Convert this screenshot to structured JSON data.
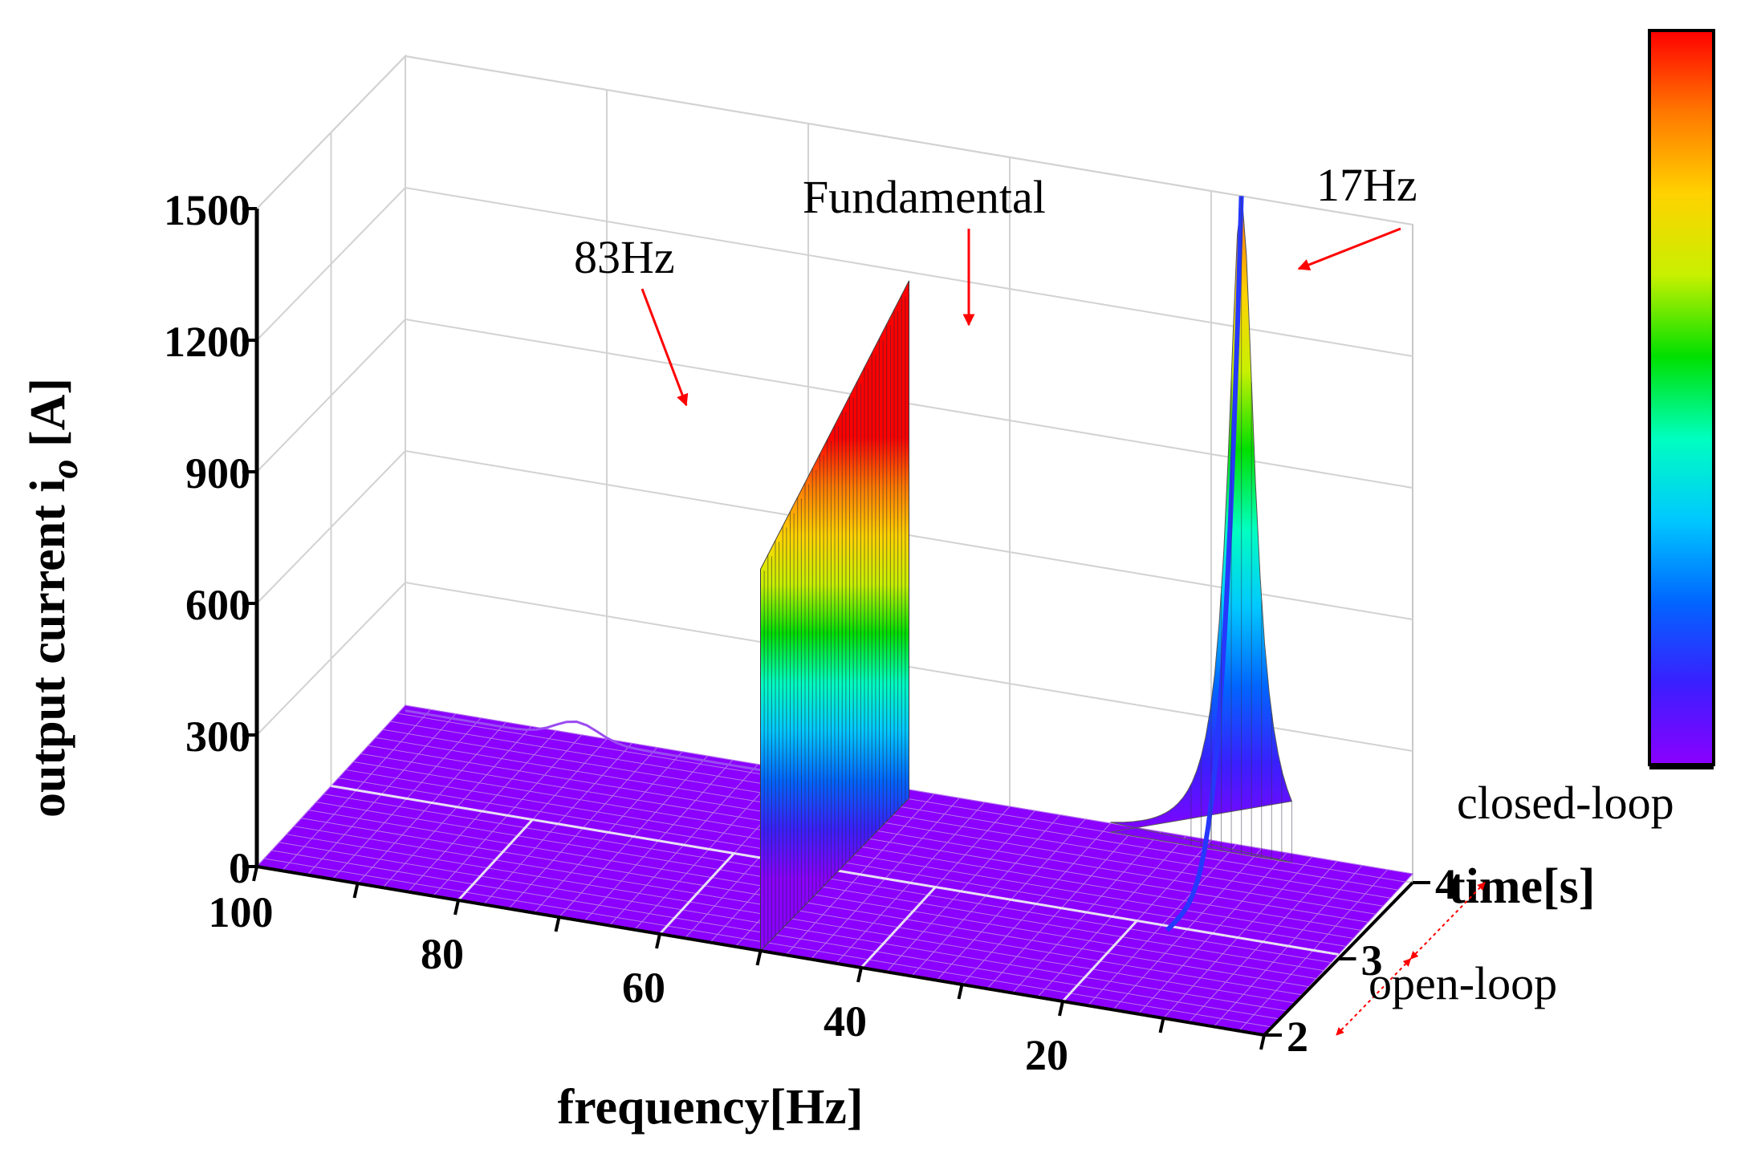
{
  "chart_data": {
    "type": "surface3d",
    "title": "",
    "xlabel": "frequency[Hz]",
    "ylabel": "time[s]",
    "zlabel": "output current i",
    "zlabel_subscript": "o",
    "zlabel_unit": " [A]",
    "xlim": [
      100,
      0
    ],
    "ylim": [
      2,
      4
    ],
    "zlim": [
      0,
      1500
    ],
    "x_ticks": [
      "100",
      "80",
      "60",
      "40",
      "20"
    ],
    "x_tick_values": [
      100,
      80,
      60,
      40,
      20
    ],
    "y_ticks": [
      "2",
      "3",
      "4"
    ],
    "y_tick_values": [
      2,
      3,
      4
    ],
    "z_ticks": [
      "0",
      "300",
      "600",
      "900",
      "1200",
      "1500"
    ],
    "z_tick_values": [
      0,
      300,
      600,
      900,
      1200,
      1500
    ],
    "grid": true,
    "colormap": [
      "#8b00ff",
      "#3a1fff",
      "#0066ff",
      "#00c8ff",
      "#00ffc0",
      "#00e000",
      "#c8f000",
      "#ffd200",
      "#ff7800",
      "#ff0000"
    ],
    "features": [
      {
        "name": "fundamental",
        "frequency_hz": 50,
        "time_range_s": [
          2,
          4
        ],
        "amplitude_a": [
          870,
          1180
        ]
      },
      {
        "name": "17Hz",
        "frequency_hz": 17,
        "time_range_s": [
          3,
          4
        ],
        "amplitude_a": [
          0,
          1500
        ]
      },
      {
        "name": "83Hz",
        "frequency_hz": 83,
        "time_range_s": [
          3,
          4
        ],
        "amplitude_a": [
          0,
          40
        ]
      }
    ],
    "annotations": [
      {
        "text": "83Hz",
        "frequency_hz": 83
      },
      {
        "text": "Fundamental",
        "frequency_hz": 50
      },
      {
        "text": "17Hz",
        "frequency_hz": 17
      }
    ],
    "phases": [
      {
        "label": "closed-loop",
        "time_range_s": [
          3,
          4
        ]
      },
      {
        "label": "open-loop",
        "time_range_s": [
          2,
          3
        ]
      }
    ],
    "colorbar": {
      "show": true,
      "tick_labels": []
    },
    "annotation_color": "#ff0000"
  }
}
